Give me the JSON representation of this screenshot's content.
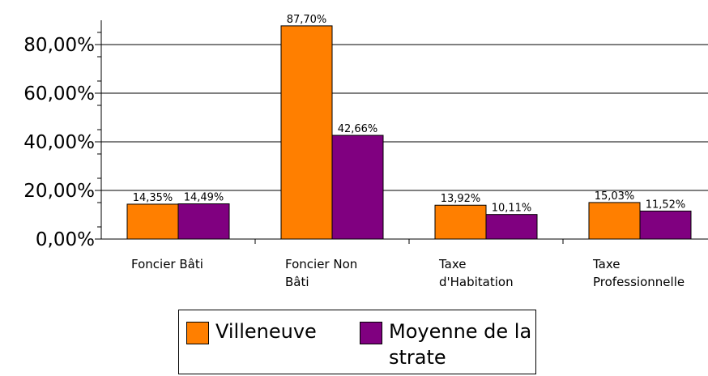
{
  "chart_data": {
    "type": "bar",
    "categories": [
      "Foncier Bâti",
      "Foncier Non Bâti",
      "Taxe d'Habitation",
      "Taxe Professionnelle"
    ],
    "series": [
      {
        "name": "Villeneuve",
        "color": "#ff7f00",
        "values": [
          14.35,
          87.7,
          13.92,
          15.03
        ],
        "value_labels": [
          "14,35%",
          "87,70%",
          "13,92%",
          "15,03%"
        ]
      },
      {
        "name": "Moyenne de la strate",
        "color": "#800080",
        "values": [
          14.49,
          42.66,
          10.11,
          11.52
        ],
        "value_labels": [
          "14,49%",
          "42,66%",
          "10,11%",
          "11,52%"
        ]
      }
    ],
    "ylim": [
      0,
      90
    ],
    "yticks": [
      {
        "value": 0,
        "label": "0,00%"
      },
      {
        "value": 20,
        "label": "20,00%"
      },
      {
        "value": 40,
        "label": "40,00%"
      },
      {
        "value": 60,
        "label": "60,00%"
      },
      {
        "value": 80,
        "label": "80,00%"
      }
    ],
    "grid": true
  }
}
